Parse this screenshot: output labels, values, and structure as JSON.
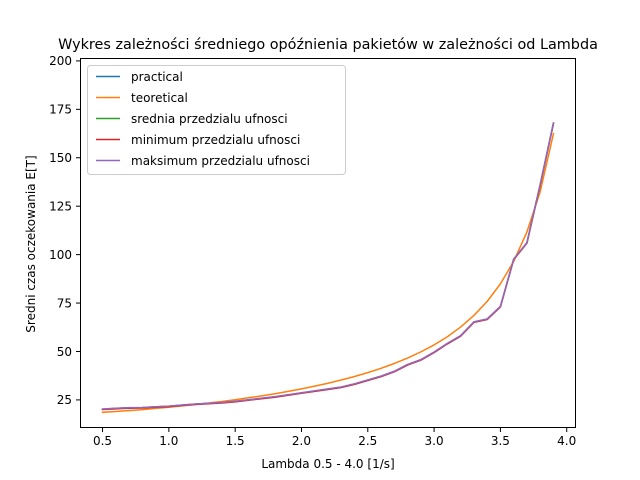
{
  "chart_data": {
    "type": "line",
    "title": "Wykres zależności średniego opóźnienia pakietów w zależności od Lambda",
    "xlabel": "Lambda 0.5 - 4.0 [1/s]",
    "ylabel": "Sredni czas oczekowania E[T]",
    "xlim": [
      0.33,
      4.07
    ],
    "ylim": [
      10.5,
      201.5
    ],
    "xticks": [
      0.5,
      1.0,
      1.5,
      2.0,
      2.5,
      3.0,
      3.5,
      4.0
    ],
    "xtick_labels": [
      "0.5",
      "1.0",
      "1.5",
      "2.0",
      "2.5",
      "3.0",
      "3.5",
      "4.0"
    ],
    "yticks": [
      25,
      50,
      75,
      100,
      125,
      150,
      175,
      200
    ],
    "ytick_labels": [
      "25",
      "50",
      "75",
      "100",
      "125",
      "150",
      "175",
      "200"
    ],
    "grid": false,
    "legend_position": "upper-left",
    "x": [
      0.5,
      0.6,
      0.7,
      0.8,
      0.9,
      1.0,
      1.1,
      1.2,
      1.3,
      1.4,
      1.5,
      1.6,
      1.7,
      1.8,
      1.9,
      2.0,
      2.1,
      2.2,
      2.3,
      2.4,
      2.5,
      2.6,
      2.7,
      2.8,
      2.9,
      3.0,
      3.1,
      3.2,
      3.3,
      3.4,
      3.5,
      3.6,
      3.7,
      3.8,
      3.9
    ],
    "series": [
      {
        "name": "practical",
        "color": "#1f77b4",
        "values": [
          20.2,
          20.6,
          20.9,
          21.0,
          21.4,
          21.7,
          22.3,
          22.8,
          23.2,
          23.6,
          24.2,
          25.0,
          25.8,
          26.6,
          27.6,
          28.6,
          29.6,
          30.6,
          31.6,
          33.2,
          35.2,
          37.2,
          39.7,
          43.2,
          45.7,
          49.6,
          54.1,
          58.1,
          65.2,
          66.7,
          73.2,
          97.6,
          106.1,
          136.1,
          167.8
        ]
      },
      {
        "name": "teoretical",
        "color": "#ff7f0e",
        "values": [
          18.6,
          19.0,
          19.5,
          20.0,
          20.6,
          21.2,
          21.9,
          22.6,
          23.4,
          24.2,
          25.1,
          26.1,
          27.1,
          28.2,
          29.4,
          30.7,
          32.1,
          33.6,
          35.3,
          37.1,
          39.1,
          41.3,
          43.8,
          46.6,
          49.8,
          53.4,
          57.6,
          62.6,
          68.6,
          75.8,
          84.9,
          96.5,
          111.7,
          132.5,
          162.4
        ]
      },
      {
        "name": "srednia przedzialu ufnosci",
        "color": "#2ca02c",
        "values": [
          20.2,
          20.6,
          20.9,
          21.0,
          21.4,
          21.7,
          22.3,
          22.8,
          23.2,
          23.6,
          24.2,
          25.0,
          25.8,
          26.6,
          27.6,
          28.6,
          29.6,
          30.6,
          31.6,
          33.2,
          35.2,
          37.2,
          39.7,
          43.2,
          45.7,
          49.6,
          54.1,
          58.1,
          65.2,
          66.7,
          73.2,
          97.6,
          106.1,
          136.1,
          167.8
        ]
      },
      {
        "name": "minimum przedzialu ufnosci",
        "color": "#d62728",
        "values": [
          20.0,
          20.4,
          20.7,
          20.8,
          21.2,
          21.5,
          22.1,
          22.6,
          23.0,
          23.4,
          24.0,
          24.8,
          25.6,
          26.4,
          27.4,
          28.4,
          29.4,
          30.4,
          31.4,
          33.0,
          35.0,
          37.0,
          39.5,
          43.0,
          45.5,
          49.4,
          53.9,
          57.9,
          65.0,
          66.5,
          73.0,
          97.4,
          105.9,
          135.9,
          167.6
        ]
      },
      {
        "name": "maksimum przedzialu ufnosci",
        "color": "#9467bd",
        "values": [
          20.3,
          20.7,
          21.0,
          21.1,
          21.5,
          21.8,
          22.4,
          22.9,
          23.3,
          23.7,
          24.3,
          25.1,
          25.9,
          26.7,
          27.7,
          28.7,
          29.7,
          30.7,
          31.7,
          33.3,
          35.3,
          37.3,
          39.8,
          43.3,
          45.8,
          49.7,
          54.2,
          58.2,
          65.3,
          66.8,
          73.3,
          97.7,
          106.2,
          136.2,
          168.0
        ]
      }
    ]
  }
}
